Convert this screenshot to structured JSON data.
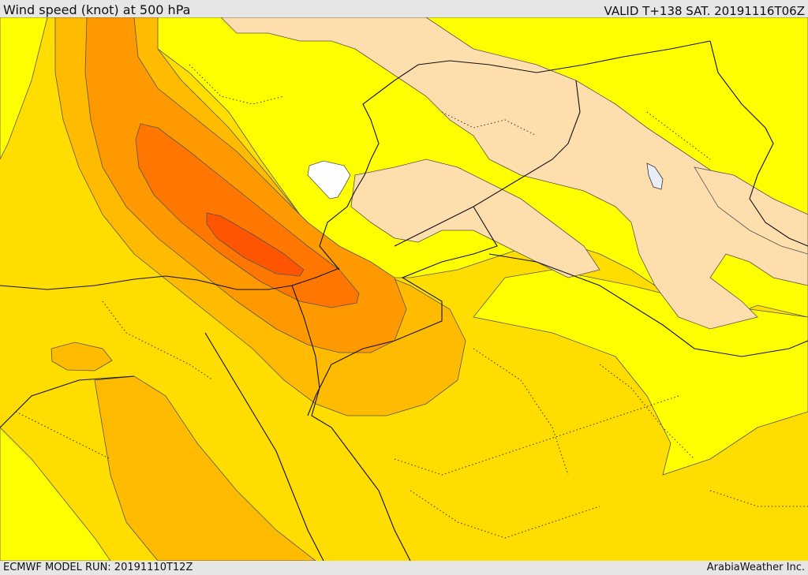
{
  "header": {
    "title": "Wind speed (knot) at 500 hPa",
    "valid": "VALID T+138 SAT. 20191116T06Z"
  },
  "footer": {
    "model_run": "ECMWF MODEL RUN: 20191110T12Z",
    "credit": "ArabiaWeather Inc."
  },
  "colors": {
    "band_lowest": "#ffdead",
    "band_1": "#ffff00",
    "band_2": "#ffdd00",
    "band_3": "#ffbb00",
    "band_4": "#ff9900",
    "band_5": "#ff7700",
    "band_6": "#ff5500",
    "calm": "#ffffff",
    "water": "#e8eef8"
  }
}
